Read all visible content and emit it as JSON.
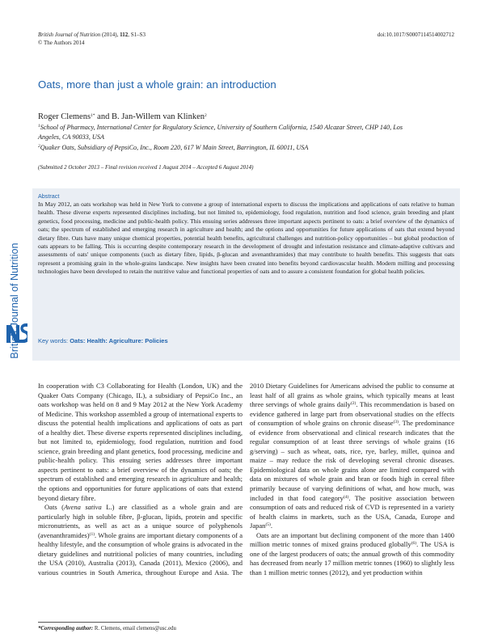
{
  "header": {
    "citation": [
      {
        "i": "British Journal of Nutrition"
      },
      " (2014), ",
      {
        "b": "112"
      },
      ", S1–S3"
    ],
    "copyright": "© The Authors 2014",
    "doi": "doi:10.1017/S0007114514002712"
  },
  "sidebar": "British Journal of Nutrition",
  "title": "Oats, more than just a whole grain: an introduction",
  "authors": [
    "Roger Clemens",
    {
      "sup": "1*"
    },
    " and B. Jan-Willem van Klinken",
    {
      "sup": "2"
    }
  ],
  "affiliations": [
    [
      {
        "sup": "1"
      },
      "School of Pharmacy, International Center for Regulatory Science, University of Southern California, 1540 Alcazar Street, CHP 140, Los Angeles, CA 90033, USA"
    ],
    [
      {
        "sup": "2"
      },
      "Quaker Oats, Subsidiary of PepsiCo, Inc., Room 220, 617 W Main Street, Barrington, IL 60011, USA"
    ]
  ],
  "submitted": "(Submitted 2 October 2013 – Final revision received 1 August 2014 – Accepted 6 August 2014)",
  "abstract": {
    "heading": "Abstract",
    "text": "In May 2012, an oats workshop was held in New York to convene a group of international experts to discuss the implications and applications of oats relative to human health. These diverse experts represented disciplines including, but not limited to, epidemiology, food regulation, nutrition and food science, grain breeding and plant genetics, food processing, medicine and public-health policy. This ensuing series addresses three important aspects pertinent to oats: a brief overview of the dynamics of oats; the spectrum of established and emerging research in agriculture and health; and the options and opportunities for future applications of oats that extend beyond dietary fibre. Oats have many unique chemical properties, potential health benefits, agricultural challenges and nutrition-policy opportunities – but global production of oats appears to be falling. This is occurring despite contemporary research in the development of drought and infestation resistance and climate-adaptive cultivars and assessments of oats' unique components (such as dietary fibre, lipids, β-glucan and avenanthramides) that may contribute to health benefits. This suggests that oats represent a promising grain in the whole-grains landscape. New insights have been created into benefits beyond cardiovascular health. Modern milling and processing technologies have been developed to retain the nutritive value and functional properties of oats and to assure a consistent foundation for global health policies."
  },
  "keywords": {
    "label": "Key words:",
    "value": "Oats: Health: Agriculture: Policies"
  },
  "body": [
    [
      "In cooperation with C3 Collaborating for Health (London, UK) and the Quaker Oats Company (Chicago, IL), a subsidiary of PepsiCo Inc., an oats workshop was held on 8 and 9 May 2012 at the New York Academy of Medicine. This workshop assembled a group of international experts to discuss the potential health implications and applications of oats as part of a healthy diet. These diverse experts represented disciplines including, but not limited to, epidemiology, food regulation, nutrition and food science, grain breeding and plant genetics, food processing, medicine and public-health policy. This ensuing series addresses three important aspects pertinent to oats: a brief overview of the dynamics of oats; the spectrum of established and emerging research in agriculture and health; the options and opportunities for future applications of oats that extend beyond dietary fibre."
    ],
    [
      "Oats (",
      {
        "i": "Avena sativa"
      },
      " L.) are classified as a whole grain and are particularly high in soluble fibre, β-glucan, lipids, protein and specific micronutrients, as well as act as a unique source of polyphenols (avenanthramides)",
      {
        "sup": "(1)"
      },
      ". Whole grains are important dietary components of a healthy lifestyle, and the consumption of whole grains is advocated in the dietary guidelines and nutritional policies of many countries, including the USA (2010), Australia (2013), Canada (2011), Mexico (2006), and various countries in South America, throughout Europe and Asia. The 2010 Dietary Guidelines for Americans advised the public to consume at least half of all grains as whole grains, which typically means at least three servings of whole grains daily",
      {
        "sup": "(2)"
      },
      ". This recommendation is based on evidence gathered in large part from observational studies on the effects of consumption of whole grains on chronic disease",
      {
        "sup": "(3)"
      },
      ". The predominance of evidence from observational and clinical research indicates that the regular consumption of at least three servings of whole grains (16 g/serving) – such as wheat, oats, rice, rye, barley, millet, quinoa and maize – may reduce the risk of developing several chronic diseases. Epidemiological data on whole grains alone are limited compared with data on mixtures of whole grain and bran or foods high in cereal fibre primarily because of varying definitions of what, and how much, was included in that food category",
      {
        "sup": "(4)"
      },
      ". The positive association between consumption of oats and reduced risk of CVD is represented in a variety of health claims in markets, such as the USA, Canada, Europe and Japan",
      {
        "sup": "(5)"
      },
      "."
    ],
    [
      "Oats are an important but declining component of the more than 1400 million metric tonnes of mixed grains produced globally",
      {
        "sup": "(6)"
      },
      ". The USA is one of the largest producers of oats; the annual growth of this commodity has decreased from nearly 17 million metric tonnes (1960) to slightly less than 1 million metric tonnes (2012), and yet production within"
    ]
  ],
  "footnote": [
    {
      "b": "*Corresponding author:"
    },
    " R. Clemens, email clemens@usc.edu"
  ]
}
